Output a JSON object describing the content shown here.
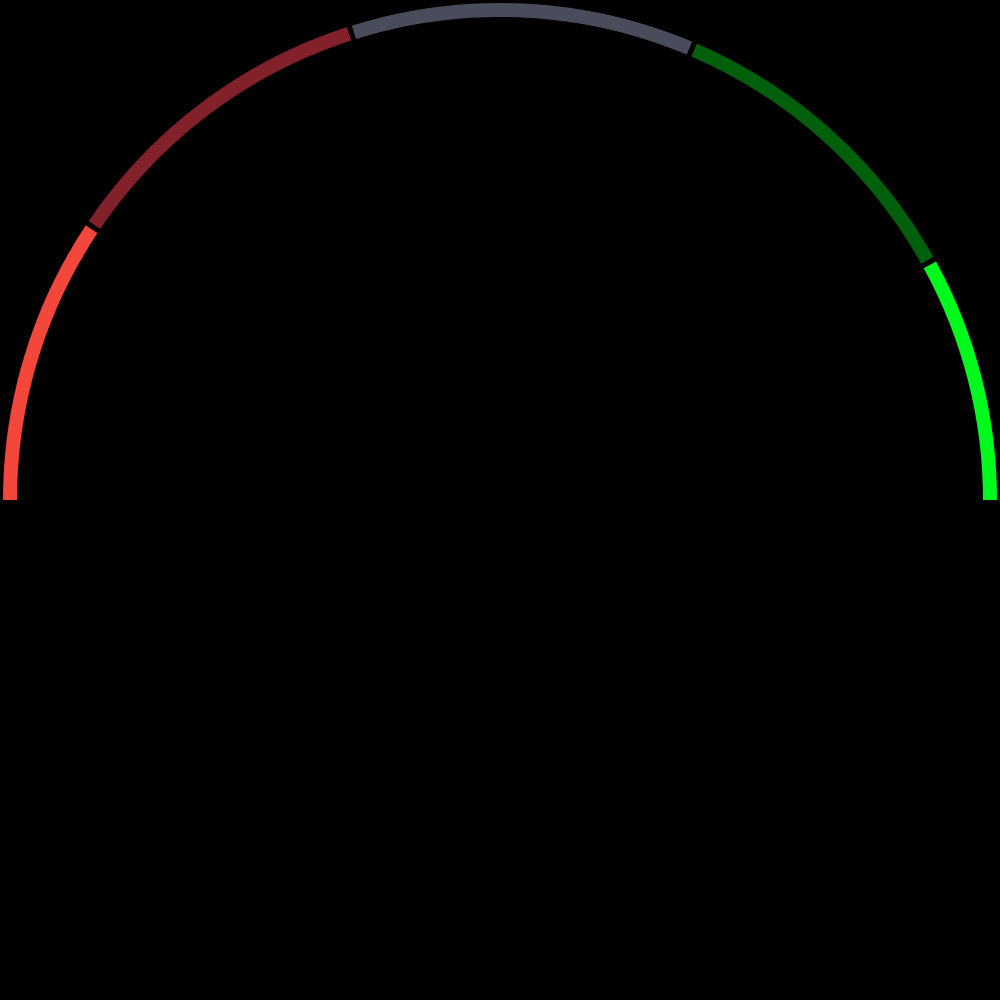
{
  "chart_data": {
    "type": "gauge",
    "shape": "semicircle",
    "direction": "left-to-right",
    "background": "#000000",
    "segments": [
      {
        "id": "seg-1",
        "fraction": 0.188,
        "color": "#F2473A"
      },
      {
        "id": "seg-2",
        "fraction": 0.214,
        "color": "#822129"
      },
      {
        "id": "seg-3",
        "fraction": 0.226,
        "color": "#494C5A"
      },
      {
        "id": "seg-4",
        "fraction": 0.211,
        "color": "#005F0A"
      },
      {
        "id": "seg-5",
        "fraction": 0.161,
        "color": "#00F91D"
      }
    ]
  }
}
